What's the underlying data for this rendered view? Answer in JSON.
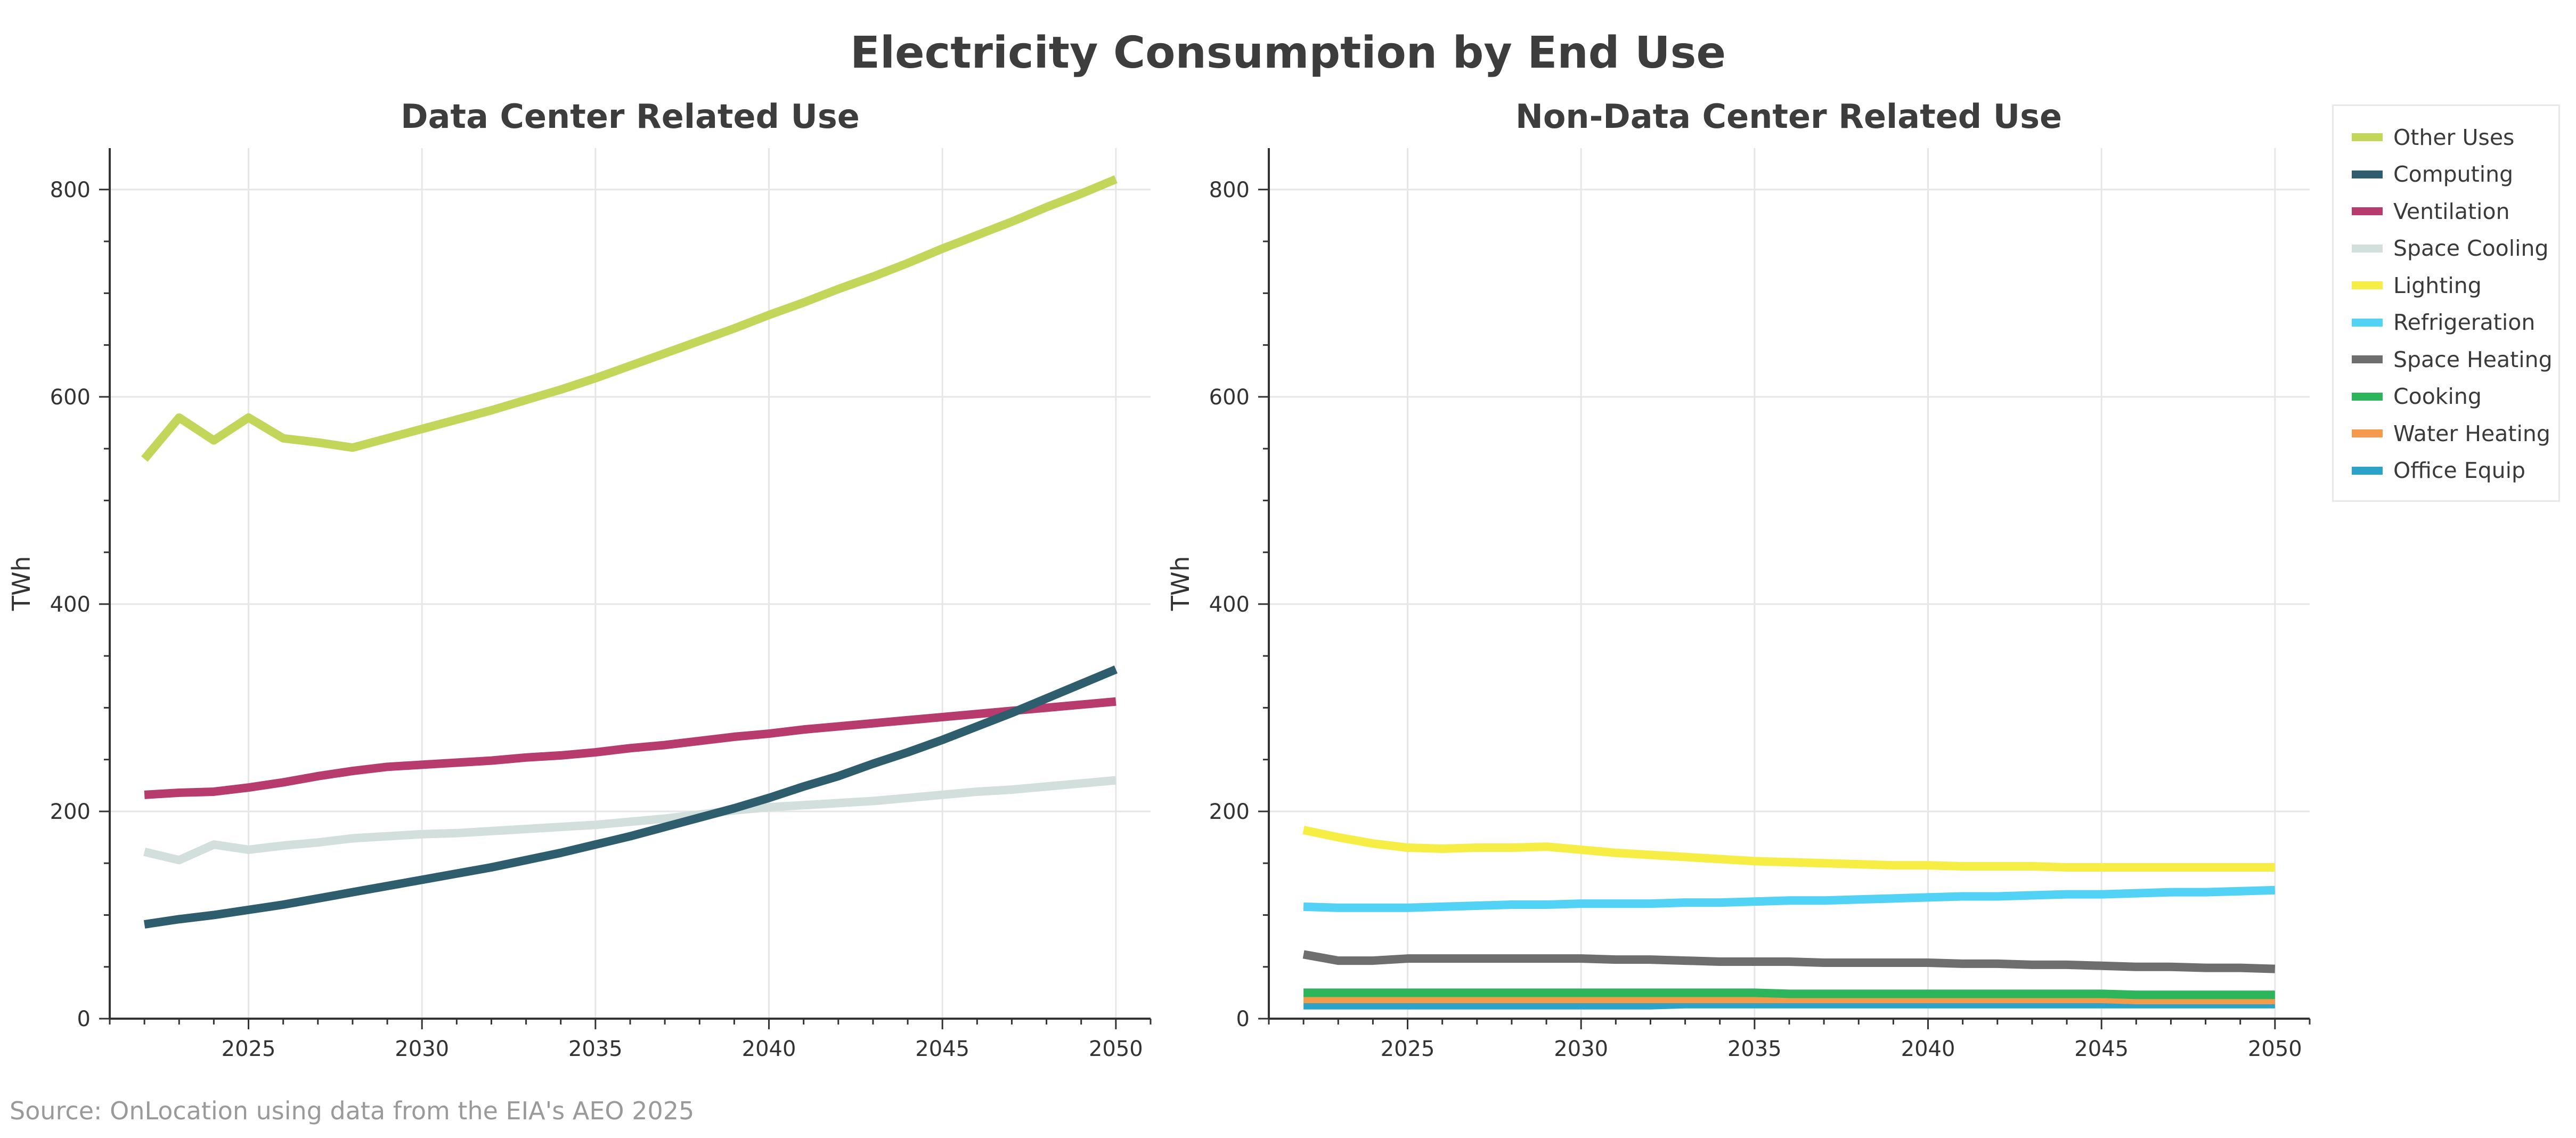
{
  "title": "Electricity Consumption by End Use",
  "source": "Source: OnLocation using data from the EIA's AEO 2025",
  "legend": [
    {
      "name": "Other Uses",
      "color": "#c4d65a"
    },
    {
      "name": "Computing",
      "color": "#2e5e6e"
    },
    {
      "name": "Ventilation",
      "color": "#b83b6e"
    },
    {
      "name": "Space Cooling",
      "color": "#d3dfdd"
    },
    {
      "name": "Lighting",
      "color": "#f6ee45"
    },
    {
      "name": "Refrigeration",
      "color": "#52d2f5"
    },
    {
      "name": "Space Heating",
      "color": "#6e6e6e"
    },
    {
      "name": "Cooking",
      "color": "#2cb55a"
    },
    {
      "name": "Water Heating",
      "color": "#f49a4a"
    },
    {
      "name": "Office Equip",
      "color": "#2ba3c9"
    }
  ],
  "chart_data": [
    {
      "type": "line",
      "title": "Data Center Related Use",
      "xlabel": "",
      "ylabel": "TWh",
      "xlim": [
        2021,
        2051
      ],
      "ylim": [
        0,
        840
      ],
      "xticks": [
        2025,
        2030,
        2035,
        2040,
        2045,
        2050
      ],
      "yticks": [
        0,
        200,
        400,
        600,
        800
      ],
      "grid": true,
      "x": [
        2022,
        2023,
        2024,
        2025,
        2026,
        2027,
        2028,
        2029,
        2030,
        2031,
        2032,
        2033,
        2034,
        2035,
        2036,
        2037,
        2038,
        2039,
        2040,
        2041,
        2042,
        2043,
        2044,
        2045,
        2046,
        2047,
        2048,
        2049,
        2050
      ],
      "series": [
        {
          "name": "Space Cooling",
          "color": "#d3dfdd",
          "values": [
            161,
            153,
            168,
            163,
            167,
            170,
            174,
            176,
            178,
            179,
            181,
            183,
            185,
            187,
            190,
            193,
            197,
            201,
            204,
            206,
            208,
            210,
            213,
            216,
            219,
            221,
            224,
            227,
            230
          ]
        },
        {
          "name": "Ventilation",
          "color": "#b83b6e",
          "values": [
            216,
            218,
            219,
            223,
            228,
            234,
            239,
            243,
            245,
            247,
            249,
            252,
            254,
            257,
            261,
            264,
            268,
            272,
            275,
            279,
            282,
            285,
            288,
            291,
            294,
            297,
            300,
            303,
            306
          ]
        },
        {
          "name": "Computing",
          "color": "#2e5e6e",
          "values": [
            91,
            96,
            100,
            105,
            110,
            116,
            122,
            128,
            134,
            140,
            146,
            153,
            160,
            168,
            176,
            185,
            194,
            203,
            213,
            224,
            234,
            246,
            257,
            269,
            282,
            295,
            309,
            323,
            337
          ]
        },
        {
          "name": "Other Uses",
          "color": "#c4d65a",
          "values": [
            540,
            580,
            558,
            580,
            560,
            556,
            551,
            560,
            569,
            578,
            587,
            597,
            607,
            618,
            630,
            642,
            654,
            666,
            679,
            691,
            704,
            716,
            729,
            743,
            756,
            769,
            783,
            796,
            810
          ]
        }
      ]
    },
    {
      "type": "line",
      "title": "Non-Data Center Related Use",
      "xlabel": "",
      "ylabel": "TWh",
      "xlim": [
        2021,
        2051
      ],
      "ylim": [
        0,
        840
      ],
      "xticks": [
        2025,
        2030,
        2035,
        2040,
        2045,
        2050
      ],
      "yticks": [
        0,
        200,
        400,
        600,
        800
      ],
      "grid": true,
      "x": [
        2022,
        2023,
        2024,
        2025,
        2026,
        2027,
        2028,
        2029,
        2030,
        2031,
        2032,
        2033,
        2034,
        2035,
        2036,
        2037,
        2038,
        2039,
        2040,
        2041,
        2042,
        2043,
        2044,
        2045,
        2046,
        2047,
        2048,
        2049,
        2050
      ],
      "series": [
        {
          "name": "Office Equip",
          "color": "#2ba3c9",
          "values": [
            13,
            13,
            13,
            13,
            13,
            13,
            13,
            13,
            13,
            13,
            13,
            14,
            14,
            14,
            14,
            14,
            14,
            14,
            14,
            14,
            14,
            14,
            14,
            14,
            14,
            14,
            14,
            14,
            14
          ]
        },
        {
          "name": "Water Heating",
          "color": "#f49a4a",
          "values": [
            19,
            19,
            19,
            19,
            19,
            19,
            19,
            19,
            19,
            19,
            19,
            19,
            19,
            19,
            19,
            19,
            19,
            19,
            19,
            19,
            19,
            19,
            19,
            19,
            18,
            18,
            18,
            18,
            18
          ]
        },
        {
          "name": "Cooking",
          "color": "#2cb55a",
          "values": [
            25,
            25,
            25,
            25,
            25,
            25,
            25,
            25,
            25,
            25,
            25,
            25,
            25,
            25,
            24,
            24,
            24,
            24,
            24,
            24,
            24,
            24,
            24,
            24,
            23,
            23,
            23,
            23,
            23
          ]
        },
        {
          "name": "Space Heating",
          "color": "#6e6e6e",
          "values": [
            62,
            56,
            56,
            58,
            58,
            58,
            58,
            58,
            58,
            57,
            57,
            56,
            55,
            55,
            55,
            54,
            54,
            54,
            54,
            53,
            53,
            52,
            52,
            51,
            50,
            50,
            49,
            49,
            48
          ]
        },
        {
          "name": "Refrigeration",
          "color": "#52d2f5",
          "values": [
            108,
            107,
            107,
            107,
            108,
            109,
            110,
            110,
            111,
            111,
            111,
            112,
            112,
            113,
            114,
            114,
            115,
            116,
            117,
            118,
            118,
            119,
            120,
            120,
            121,
            122,
            122,
            123,
            124
          ]
        },
        {
          "name": "Lighting",
          "color": "#f6ee45",
          "values": [
            182,
            175,
            169,
            165,
            164,
            165,
            165,
            166,
            163,
            160,
            158,
            156,
            154,
            152,
            151,
            150,
            149,
            148,
            148,
            147,
            147,
            147,
            146,
            146,
            146,
            146,
            146,
            146,
            146
          ]
        }
      ]
    }
  ]
}
